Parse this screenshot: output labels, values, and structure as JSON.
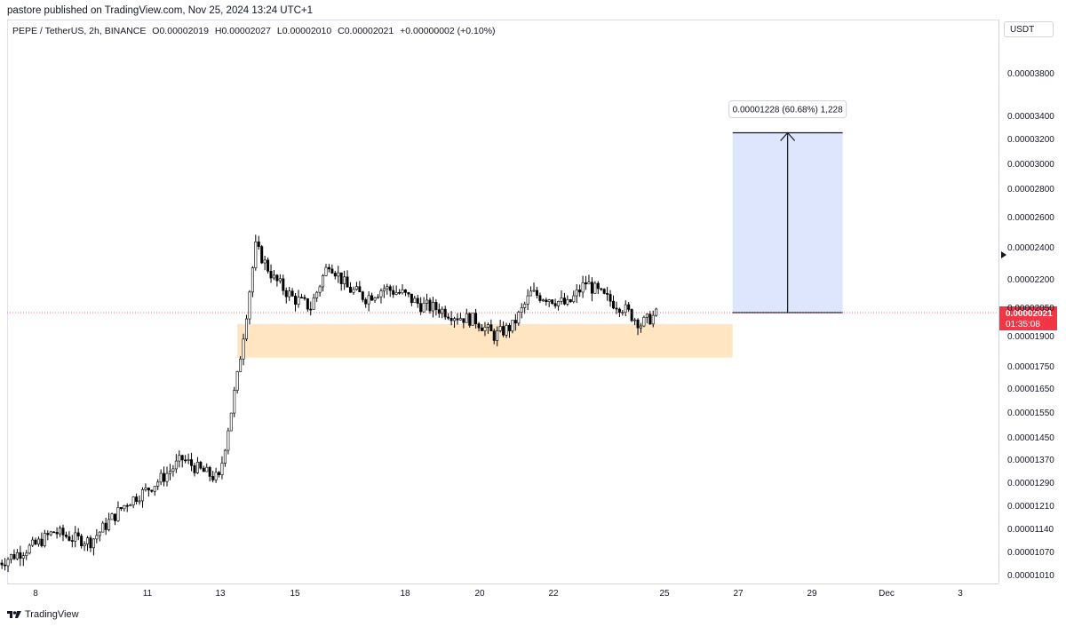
{
  "header": {
    "caption": "pastore published on TradingView.com, Nov 25, 2024 13:24 UTC+1"
  },
  "ohlc": {
    "symbol": "PEPE / TetherUS, 2h, BINANCE",
    "open_label": "O",
    "open": "0.00002019",
    "high_label": "H",
    "high": "0.00002027",
    "low_label": "L",
    "low": "0.00002010",
    "close_label": "C",
    "close": "0.00002021",
    "change": "+0.00000002 (+0.10%)"
  },
  "price_axis": {
    "currency": "USDT",
    "ticks": [
      "0.00003800",
      "0.00003400",
      "0.00003200",
      "0.00003000",
      "0.00002800",
      "0.00002600",
      "0.00002400",
      "0.00002200",
      "0.00002050",
      "0.00001900",
      "0.00001750",
      "0.00001650",
      "0.00001550",
      "0.00001450",
      "0.00001370",
      "0.00001290",
      "0.00001210",
      "0.00001140",
      "0.00001070",
      "0.00001010"
    ],
    "last_price": "0.00002021",
    "countdown": "01:35:08"
  },
  "time_axis": {
    "labels": [
      "8",
      "11",
      "13",
      "15",
      "18",
      "20",
      "22",
      "25",
      "27",
      "29",
      "Dec",
      "3"
    ]
  },
  "annotations": {
    "measure_label": "0.00001228 (60.68%) 1,228"
  },
  "colors": {
    "candle_up": "#ffffff",
    "candle_down": "#000000",
    "candle_border": "#000000",
    "support_zone": "#ffe5c2",
    "target_zone": "#dde6fc",
    "last_price": "#f23645"
  },
  "footer": {
    "brand": "TradingView",
    "icon": "tradingview-logo-icon"
  },
  "chart_data": {
    "type": "candlestick",
    "symbol": "PEPE / TetherUS",
    "interval": "2h",
    "y_scale": "log",
    "ylim": [
      1e-05,
      4e-05
    ],
    "x_range": [
      "Nov 7",
      "Dec 4"
    ],
    "close_path": [
      [
        "Nov 7",
        1.04e-05
      ],
      [
        "Nov 8",
        1.09e-05
      ],
      [
        "Nov 8 12:00",
        1.13e-05
      ],
      [
        "Nov 9",
        1.11e-05
      ],
      [
        "Nov 9 12:00",
        1.1e-05
      ],
      [
        "Nov 10",
        1.16e-05
      ],
      [
        "Nov 10 12:00",
        1.22e-05
      ],
      [
        "Nov 11",
        1.26e-05
      ],
      [
        "Nov 11 12:00",
        1.31e-05
      ],
      [
        "Nov 12",
        1.37e-05
      ],
      [
        "Nov 12 12:00",
        1.33e-05
      ],
      [
        "Nov 13",
        1.3e-05
      ],
      [
        "Nov 13 12:00",
        1.7e-05
      ],
      [
        "Nov 14",
        2.4e-05
      ],
      [
        "Nov 14 12:00",
        2.2e-05
      ],
      [
        "Nov 15",
        2.1e-05
      ],
      [
        "Nov 15 12:00",
        2.05e-05
      ],
      [
        "Nov 16",
        2.3e-05
      ],
      [
        "Nov 16 12:00",
        2.15e-05
      ],
      [
        "Nov 17",
        2.1e-05
      ],
      [
        "Nov 17 12:00",
        2.15e-05
      ],
      [
        "Nov 18",
        2.12e-05
      ],
      [
        "Nov 18 12:00",
        2.06e-05
      ],
      [
        "Nov 19",
        2.04e-05
      ],
      [
        "Nov 19 12:00",
        2e-05
      ],
      [
        "Nov 20",
        1.98e-05
      ],
      [
        "Nov 20 12:00",
        1.9e-05
      ],
      [
        "Nov 21",
        1.95e-05
      ],
      [
        "Nov 21 12:00",
        2.12e-05
      ],
      [
        "Nov 22",
        2.1e-05
      ],
      [
        "Nov 22 12:00",
        2.06e-05
      ],
      [
        "Nov 23",
        2.18e-05
      ],
      [
        "Nov 23 12:00",
        2.1e-05
      ],
      [
        "Nov 24",
        2.05e-05
      ],
      [
        "Nov 24 12:00",
        1.96e-05
      ],
      [
        "Nov 25",
        2.021e-05
      ]
    ],
    "zones": [
      {
        "kind": "support",
        "low": 1.79e-05,
        "high": 1.96e-05,
        "from": "Nov 13 12:00",
        "to": "Nov 27"
      },
      {
        "kind": "target",
        "low": 2.021e-05,
        "high": 3.249e-05,
        "from": "Nov 27",
        "to": "Nov 30"
      }
    ],
    "measure": {
      "from_price": 2.021e-05,
      "to_price": 3.249e-05,
      "text": "0.00001228 (60.68%) 1,228"
    },
    "last_price": 2.021e-05,
    "grid": false,
    "legend": "none"
  }
}
